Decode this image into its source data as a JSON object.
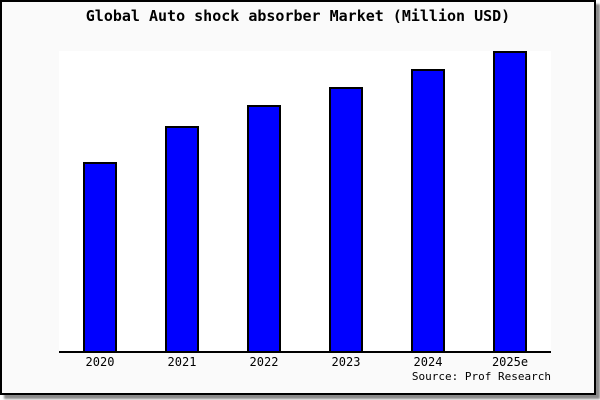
{
  "title": "Global Auto shock absorber Market (Million USD)",
  "source": "Source: Prof Research",
  "chart_data": {
    "type": "bar",
    "title": "Global Auto shock absorber Market (Million USD)",
    "categories": [
      "2020",
      "2021",
      "2022",
      "2023",
      "2024",
      "2025e"
    ],
    "values": [
      63,
      75,
      82,
      88,
      94,
      100
    ],
    "xlabel": "",
    "ylabel": "",
    "ylim": [
      0,
      100
    ],
    "y_axis_visible": false,
    "grid": false,
    "legend": false,
    "value_note": "No y-axis or data labels are rendered; values are relative bar heights estimated from pixels with the tallest bar (2025e) = 100."
  },
  "colors": {
    "bar_fill": "#0000ff",
    "bar_border": "#000000",
    "card_background": "#fafafa",
    "plot_background": "#ffffff",
    "frame": "#000000",
    "shadow": "#8a8a8a",
    "text": "#000000"
  }
}
